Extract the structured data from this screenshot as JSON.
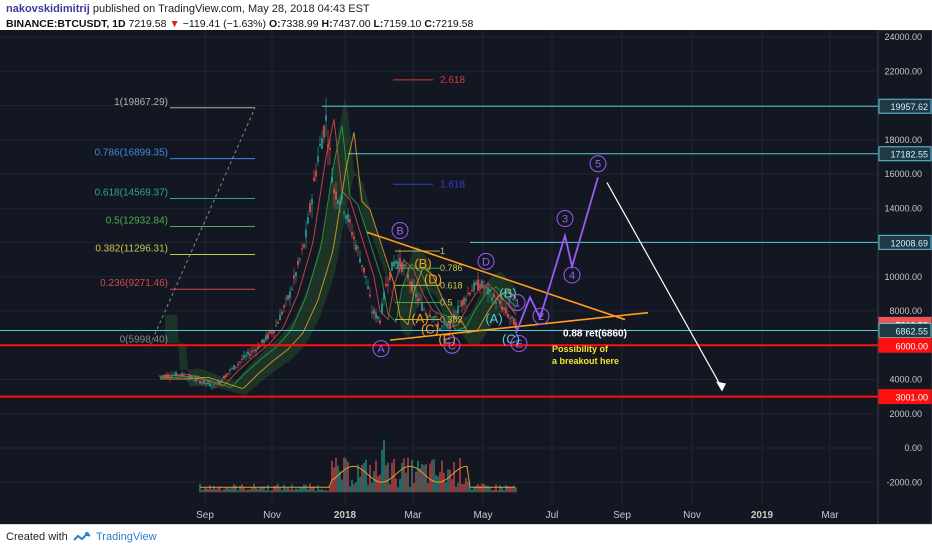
{
  "header": {
    "author": "nakovskidimitrij",
    "published": "published on TradingView.com, May 28, 2018 04:43 EST",
    "symbol": "BINANCE:BTCUSDT, 1D",
    "last": "7219.58",
    "change": "−119.41 (−1.63%)",
    "o_label": "O:",
    "o": "7338.99",
    "h_label": "H:",
    "h": "7437.00",
    "l_label": "L:",
    "l": "7159.10",
    "c_label": "C:",
    "c": "7219.58"
  },
  "footer": {
    "created_with": "Created with",
    "brand": "TradingView"
  },
  "colors": {
    "bg": "#131722",
    "grid": "#1f2433",
    "up": "#26a69a",
    "down": "#ef5350",
    "orange": "#ff9d1e",
    "purple": "#9a5cf2",
    "cyan": "#5bc8d8",
    "red_line": "#ff1010",
    "white": "#ffffff"
  },
  "chart_data": {
    "type": "candlestick",
    "title": "",
    "y_axis": {
      "ticks": [
        "24000.00",
        "22000.00",
        "20000.00",
        "18000.00",
        "16000.00",
        "14000.00",
        "12000.00",
        "10000.00",
        "8000.00",
        "6000.00",
        "4000.00",
        "2000.00",
        "0.00",
        "-2000.00"
      ],
      "range": [
        -3000,
        25000
      ]
    },
    "x_axis": {
      "ticks": [
        "Sep",
        "Nov",
        "2018",
        "Mar",
        "May",
        "Jul",
        "Sep",
        "Nov",
        "2019",
        "Mar"
      ]
    },
    "price_labels": [
      {
        "value": 19957.62,
        "text": "19957.62",
        "color": "#5bc8d8"
      },
      {
        "value": 17182.55,
        "text": "17182.55",
        "color": "#5bc8d8"
      },
      {
        "value": 12008.69,
        "text": "12008.69",
        "color": "#5bc8d8"
      },
      {
        "value": 7219.58,
        "text": "7219.58",
        "color": "#ef5350"
      },
      {
        "value": 6862.55,
        "text": "6862.55",
        "color": "#5bc8d8"
      },
      {
        "value": 6000.0,
        "text": "6000.00",
        "color": "#ff1010"
      },
      {
        "value": 3001.0,
        "text": "3001.00",
        "color": "#ff1010"
      }
    ],
    "fib_levels": [
      {
        "label": "1(19867.29)",
        "value": 19867.29,
        "color": "#b0b0b0"
      },
      {
        "label": "0.786(16899.35)",
        "value": 16899.35,
        "color": "#3d8be0"
      },
      {
        "label": "0.618(14569.37)",
        "value": 14569.37,
        "color": "#26a69a"
      },
      {
        "label": "0.5(12932.84)",
        "value": 12932.84,
        "color": "#4caf50"
      },
      {
        "label": "0.382(11296.31)",
        "value": 11296.31,
        "color": "#c8c84a"
      },
      {
        "label": "0.236(9271.46)",
        "value": 9271.46,
        "color": "#d24a4a"
      },
      {
        "label": "0(5998.40)",
        "value": 5998.4,
        "color": "#888888"
      }
    ],
    "fib_extensions": [
      {
        "label": "2.618",
        "value": 21500,
        "color": "#d23b3b"
      },
      {
        "label": "1.618",
        "value": 15400,
        "color": "#3b3bd2"
      }
    ],
    "small_fib": [
      "1",
      "0.786",
      "0.618",
      "0.5",
      "0.382"
    ],
    "wave_labels_orange": [
      "(A)",
      "(B)",
      "(C)",
      "(D)",
      "(E)"
    ],
    "wave_labels_purple": [
      "A",
      "B",
      "C",
      "D",
      "E"
    ],
    "wave_labels_cyan": [
      "(A)",
      "(B)",
      "(C)"
    ],
    "wave_labels_impulse": [
      "1",
      "2",
      "3",
      "4",
      "5"
    ],
    "annotations": {
      "retrace": "0.88 ret(6860)",
      "breakout_1": "Possibility of",
      "breakout_2": "a breakout here"
    },
    "volume_ticks": [
      "0.00",
      "-2000.00"
    ]
  }
}
